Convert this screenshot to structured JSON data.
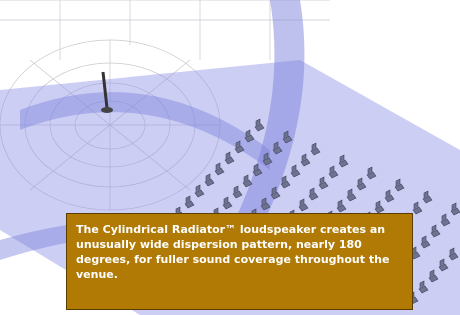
{
  "caption": {
    "text": "The Cylindrical Radiator™ loudspeaker creates an unusually wide dispersion pattern, nearly 180 degrees, for fuller sound coverage throughout the venue."
  }
}
